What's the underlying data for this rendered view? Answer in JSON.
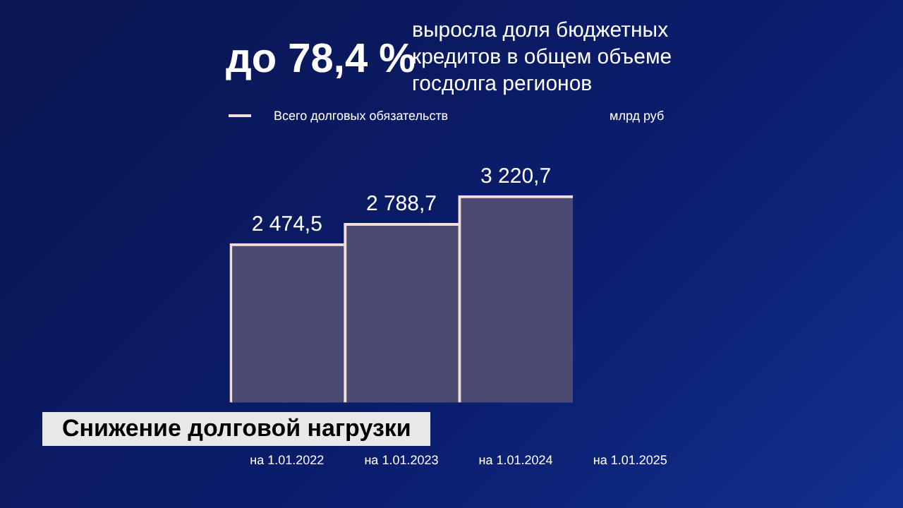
{
  "chart_data": {
    "type": "bar",
    "title": "до 78,4 %",
    "subtitle": "выросла доля бюджетных кредитов в общем объеме госдолга регионов",
    "categories": [
      "на 1.01.2022",
      "на 1.01.2023",
      "на 1.01.2024",
      "на 1.01.2025"
    ],
    "series": [
      {
        "name": "Всего долговых обязательств",
        "color": "#4b4a72",
        "values": [
          2474.5,
          2788.7,
          3220.7,
          null
        ],
        "value_labels": [
          "2 474,5",
          "2 788,7",
          "3 220,7",
          null
        ]
      }
    ],
    "data_labels": true,
    "legend": "top left",
    "grid": false,
    "annotations": [
      "млрд руб",
      "Снижение долговой нагрузки"
    ]
  }
}
